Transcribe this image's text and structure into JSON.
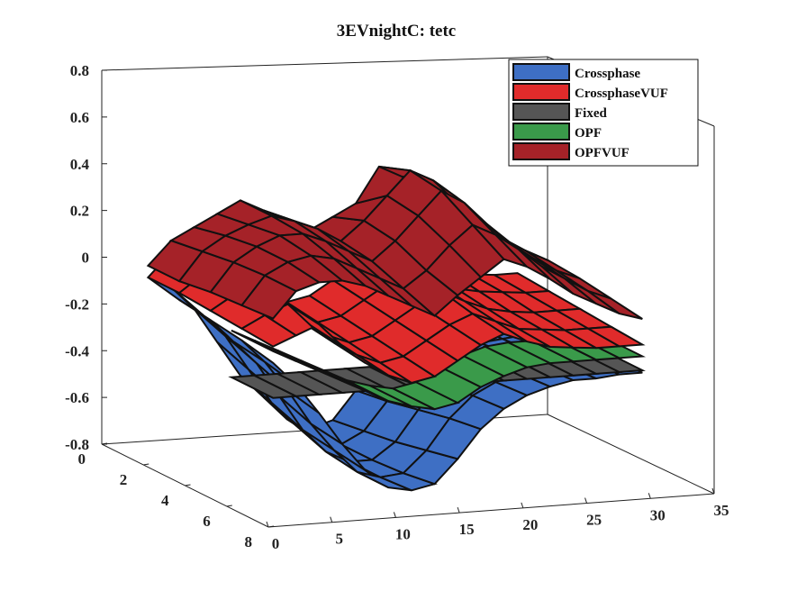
{
  "chart_data": {
    "type": "surface3d",
    "title": "3EVnightC: tetc",
    "xlabel": "",
    "ylabel": "",
    "zlabel": "",
    "x_ticks": [
      "0",
      "5",
      "10",
      "15",
      "20",
      "25",
      "30",
      "35"
    ],
    "y_ticks": [
      "0",
      "2",
      "4",
      "6",
      "8"
    ],
    "z_ticks": [
      "0.8",
      "0.6",
      "0.4",
      "0.2",
      "0",
      "-0.2",
      "-0.4",
      "-0.6",
      "-0.8"
    ],
    "xlim": [
      0,
      35
    ],
    "ylim": [
      0,
      8
    ],
    "zlim": [
      -0.8,
      0.8
    ],
    "legend_position": "top-right",
    "series": [
      {
        "name": "Crossphase",
        "color": "#3e6fc4",
        "z": [
          [
            -0.05,
            -0.1,
            -0.2,
            -0.35,
            -0.5,
            -0.6,
            -0.7,
            -0.75,
            -0.72,
            -0.6,
            -0.5,
            -0.45,
            -0.4,
            -0.38,
            -0.36,
            -0.35,
            -0.34
          ],
          [
            -0.08,
            -0.15,
            -0.25,
            -0.4,
            -0.55,
            -0.65,
            -0.72,
            -0.75,
            -0.7,
            -0.58,
            -0.48,
            -0.42,
            -0.38,
            -0.36,
            -0.35,
            -0.34,
            -0.33
          ],
          [
            -0.1,
            -0.2,
            -0.3,
            -0.45,
            -0.6,
            -0.7,
            -0.75,
            -0.75,
            -0.68,
            -0.55,
            -0.45,
            -0.4,
            -0.36,
            -0.34,
            -0.34,
            -0.33,
            -0.33
          ],
          [
            -0.12,
            -0.22,
            -0.35,
            -0.5,
            -0.62,
            -0.72,
            -0.75,
            -0.74,
            -0.65,
            -0.52,
            -0.43,
            -0.38,
            -0.35,
            -0.33,
            -0.33,
            -0.32,
            -0.32
          ],
          [
            -0.15,
            -0.25,
            -0.38,
            -0.52,
            -0.64,
            -0.72,
            -0.74,
            -0.72,
            -0.62,
            -0.5,
            -0.42,
            -0.37,
            -0.34,
            -0.32,
            -0.32,
            -0.31,
            -0.31
          ]
        ]
      },
      {
        "name": "CrossphaseVUF",
        "color": "#e02b2b",
        "z": [
          [
            -0.05,
            0.05,
            0.1,
            0.0,
            -0.1,
            -0.15,
            -0.2,
            -0.18,
            -0.12,
            -0.05,
            0.0,
            -0.05,
            -0.1,
            -0.12,
            -0.14,
            -0.15,
            -0.15
          ],
          [
            -0.05,
            0.02,
            0.08,
            -0.02,
            -0.12,
            -0.18,
            -0.22,
            -0.2,
            -0.14,
            -0.08,
            -0.03,
            -0.08,
            -0.12,
            -0.14,
            -0.15,
            -0.16,
            -0.16
          ],
          [
            -0.06,
            0.0,
            0.05,
            -0.05,
            -0.14,
            -0.2,
            -0.24,
            -0.22,
            -0.16,
            -0.1,
            -0.05,
            -0.1,
            -0.14,
            -0.16,
            -0.17,
            -0.17,
            -0.17
          ],
          [
            -0.07,
            -0.02,
            0.02,
            -0.08,
            -0.16,
            -0.22,
            -0.26,
            -0.24,
            -0.18,
            -0.12,
            -0.08,
            -0.12,
            -0.16,
            -0.17,
            -0.18,
            -0.18,
            -0.18
          ],
          [
            -0.08,
            -0.04,
            0.0,
            -0.1,
            -0.18,
            -0.24,
            -0.28,
            -0.26,
            -0.2,
            -0.14,
            -0.1,
            -0.14,
            -0.17,
            -0.18,
            -0.19,
            -0.19,
            -0.19
          ]
        ]
      },
      {
        "name": "Fixed",
        "color": "#555555",
        "z": [
          [
            -0.3,
            -0.3,
            -0.3,
            -0.3,
            -0.3,
            -0.3,
            -0.3,
            -0.3,
            -0.3,
            -0.3,
            -0.3,
            -0.3,
            -0.3,
            -0.3,
            -0.3,
            -0.3,
            -0.3
          ]
        ]
      },
      {
        "name": "OPF",
        "color": "#3a9a4a",
        "z": [
          [
            -0.1,
            -0.15,
            -0.2,
            -0.25,
            -0.3,
            -0.35,
            -0.38,
            -0.4,
            -0.38,
            -0.32,
            -0.28,
            -0.25,
            -0.24,
            -0.24,
            -0.24,
            -0.24,
            -0.24
          ]
        ]
      },
      {
        "name": "OPFVUF",
        "color": "#a52228",
        "z": [
          [
            0.0,
            0.1,
            0.15,
            0.2,
            0.25,
            0.2,
            0.15,
            0.1,
            0.15,
            0.2,
            0.35,
            0.3,
            0.2,
            0.1,
            0.05,
            0.0,
            -0.05
          ],
          [
            0.0,
            0.12,
            0.18,
            0.22,
            0.25,
            0.22,
            0.18,
            0.12,
            0.2,
            0.3,
            0.4,
            0.35,
            0.25,
            0.15,
            0.08,
            0.02,
            -0.03
          ],
          [
            0.02,
            0.14,
            0.2,
            0.24,
            0.24,
            0.2,
            0.15,
            0.1,
            0.18,
            0.28,
            0.38,
            0.32,
            0.22,
            0.12,
            0.06,
            0.0,
            -0.04
          ],
          [
            0.03,
            0.15,
            0.2,
            0.22,
            0.2,
            0.15,
            0.1,
            0.05,
            0.12,
            0.22,
            0.3,
            0.25,
            0.18,
            0.1,
            0.04,
            -0.02,
            -0.06
          ],
          [
            0.04,
            0.15,
            0.18,
            0.18,
            0.15,
            0.1,
            0.05,
            0.0,
            0.08,
            0.15,
            0.22,
            0.18,
            0.12,
            0.05,
            0.0,
            -0.05,
            -0.08
          ]
        ]
      }
    ]
  }
}
